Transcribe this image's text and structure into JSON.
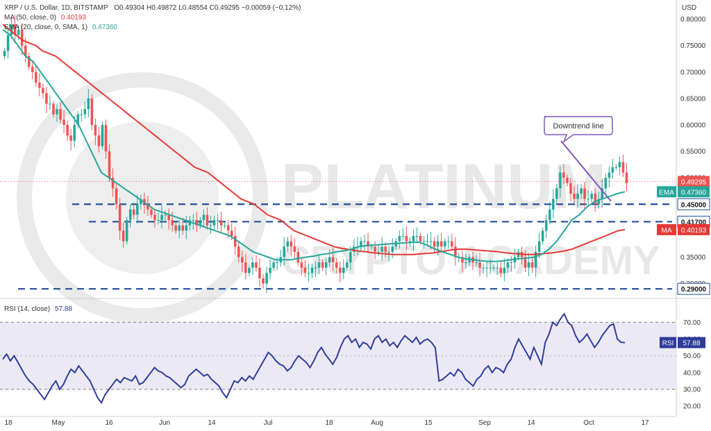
{
  "watermark": {
    "line1": "PLATINUM",
    "line2": "CRYPTO ACADEMY"
  },
  "header": {
    "symbol": "XRP / U.S. Dollar, 1D, BITSTAMP",
    "ohlc": "O0.49304  H0.49872  L0.48554  C0.49295  −0.00059 (−0.12%)",
    "ma_legend": "MA (50, close, 0)",
    "ma_value": "0.40193",
    "ema_legend": "EMA (20, close, 0, SMA, 1)",
    "ema_value": "0.47360",
    "rsi_legend": "RSI (14, close)",
    "rsi_value": "57.88"
  },
  "colors": {
    "up": "#26a69a",
    "down": "#ef5350",
    "ma": "#e53935",
    "ema": "#26a69a",
    "rsi": "#2e3b9a",
    "level": "#1f4e99",
    "trend": "#7e57c2",
    "rsi_band": "#ece9f7"
  },
  "chart_data": [
    {
      "type": "candlestick",
      "title": "XRP / U.S. Dollar, 1D, BITSTAMP",
      "ylabel": "USD",
      "x_ticks": [
        "18",
        "May",
        "16",
        "Jun",
        "14",
        "Jul",
        "18",
        "Aug",
        "15",
        "Sep",
        "14",
        "Oct",
        "17"
      ],
      "y_ticks": [
        "0.80000",
        "0.75000",
        "0.70000",
        "0.65000",
        "0.60000",
        "0.55000",
        "0.50000",
        "0.45000",
        "0.40000",
        "0.35000",
        "0.30000"
      ],
      "ylim": [
        0.285,
        0.81
      ],
      "last_price": "0.49295",
      "levels": [
        {
          "value": 0.45,
          "label": "0.45000"
        },
        {
          "value": 0.417,
          "label": "0.41700"
        },
        {
          "value": 0.29,
          "label": "0.29000"
        }
      ],
      "badges": [
        {
          "name": "EMA",
          "value": "0.47360"
        },
        {
          "name": "MA",
          "value": "0.40193"
        }
      ],
      "annotation": "Downtrend line",
      "close_series": [
        0.74,
        0.77,
        0.79,
        0.77,
        0.78,
        0.75,
        0.73,
        0.71,
        0.7,
        0.68,
        0.67,
        0.66,
        0.64,
        0.64,
        0.62,
        0.63,
        0.61,
        0.6,
        0.58,
        0.57,
        0.6,
        0.62,
        0.62,
        0.63,
        0.65,
        0.6,
        0.58,
        0.56,
        0.6,
        0.55,
        0.5,
        0.48,
        0.45,
        0.4,
        0.38,
        0.42,
        0.44,
        0.43,
        0.45,
        0.46,
        0.45,
        0.44,
        0.43,
        0.42,
        0.42,
        0.43,
        0.43,
        0.42,
        0.41,
        0.4,
        0.41,
        0.4,
        0.41,
        0.42,
        0.42,
        0.41,
        0.42,
        0.43,
        0.41,
        0.41,
        0.42,
        0.42,
        0.41,
        0.41,
        0.4,
        0.39,
        0.37,
        0.35,
        0.34,
        0.32,
        0.33,
        0.34,
        0.33,
        0.31,
        0.3,
        0.32,
        0.33,
        0.34,
        0.34,
        0.35,
        0.37,
        0.38,
        0.37,
        0.36,
        0.34,
        0.33,
        0.32,
        0.32,
        0.33,
        0.33,
        0.34,
        0.33,
        0.34,
        0.35,
        0.34,
        0.33,
        0.32,
        0.33,
        0.34,
        0.36,
        0.37,
        0.37,
        0.38,
        0.38,
        0.37,
        0.37,
        0.36,
        0.36,
        0.37,
        0.36,
        0.36,
        0.37,
        0.38,
        0.39,
        0.39,
        0.38,
        0.38,
        0.39,
        0.39,
        0.38,
        0.38,
        0.38,
        0.38,
        0.37,
        0.38,
        0.37,
        0.38,
        0.38,
        0.37,
        0.35,
        0.35,
        0.34,
        0.34,
        0.35,
        0.34,
        0.34,
        0.33,
        0.33,
        0.33,
        0.33,
        0.33,
        0.33,
        0.32,
        0.33,
        0.34,
        0.34,
        0.35,
        0.36,
        0.35,
        0.33,
        0.34,
        0.33,
        0.36,
        0.38,
        0.4,
        0.42,
        0.44,
        0.46,
        0.48,
        0.51,
        0.5,
        0.49,
        0.47,
        0.46,
        0.47,
        0.48,
        0.46,
        0.46,
        0.47,
        0.45,
        0.46,
        0.48,
        0.5,
        0.51,
        0.52,
        0.52,
        0.53,
        0.51,
        0.49
      ],
      "ma50_series": [
        0.79,
        0.78,
        0.77,
        0.76,
        0.755,
        0.75,
        0.74,
        0.735,
        0.73,
        0.72,
        0.71,
        0.7,
        0.69,
        0.68,
        0.67,
        0.66,
        0.65,
        0.64,
        0.63,
        0.62,
        0.61,
        0.6,
        0.59,
        0.58,
        0.57,
        0.56,
        0.55,
        0.54,
        0.53,
        0.52,
        0.515,
        0.51,
        0.5,
        0.49,
        0.48,
        0.47,
        0.46,
        0.455,
        0.45,
        0.44,
        0.43,
        0.425,
        0.42,
        0.41,
        0.4,
        0.395,
        0.39,
        0.385,
        0.38,
        0.375,
        0.37,
        0.367,
        0.365,
        0.363,
        0.361,
        0.36,
        0.358,
        0.357,
        0.356,
        0.355,
        0.355,
        0.355,
        0.355,
        0.356,
        0.357,
        0.358,
        0.36,
        0.362,
        0.364,
        0.365,
        0.365,
        0.364,
        0.363,
        0.362,
        0.361,
        0.36,
        0.358,
        0.357,
        0.356,
        0.355,
        0.355,
        0.356,
        0.357,
        0.358,
        0.36,
        0.362,
        0.365,
        0.37,
        0.375,
        0.38,
        0.385,
        0.39,
        0.395,
        0.4,
        0.402
      ],
      "ema20_series": [
        0.78,
        0.77,
        0.75,
        0.73,
        0.72,
        0.7,
        0.68,
        0.66,
        0.64,
        0.62,
        0.6,
        0.57,
        0.54,
        0.51,
        0.5,
        0.49,
        0.48,
        0.47,
        0.46,
        0.45,
        0.44,
        0.435,
        0.43,
        0.425,
        0.42,
        0.415,
        0.41,
        0.405,
        0.4,
        0.395,
        0.39,
        0.38,
        0.37,
        0.36,
        0.355,
        0.35,
        0.345,
        0.345,
        0.345,
        0.348,
        0.35,
        0.352,
        0.355,
        0.357,
        0.36,
        0.362,
        0.365,
        0.37,
        0.372,
        0.373,
        0.374,
        0.375,
        0.376,
        0.377,
        0.378,
        0.378,
        0.372,
        0.365,
        0.36,
        0.355,
        0.35,
        0.347,
        0.345,
        0.343,
        0.342,
        0.342,
        0.343,
        0.345,
        0.347,
        0.348,
        0.35,
        0.355,
        0.365,
        0.38,
        0.4,
        0.42,
        0.43,
        0.445,
        0.455,
        0.46,
        0.465,
        0.47,
        0.4736
      ]
    },
    {
      "type": "line",
      "title": "RSI (14, close)",
      "y_ticks": [
        "70.00",
        "60.00",
        "50.00",
        "40.00",
        "30.00",
        "20.00"
      ],
      "ylim": [
        18,
        78
      ],
      "band": [
        30,
        70
      ],
      "last_value": "57.88",
      "values": [
        48,
        51,
        47,
        50,
        46,
        42,
        38,
        35,
        33,
        30,
        27,
        24,
        28,
        32,
        35,
        30,
        33,
        38,
        42,
        40,
        44,
        41,
        38,
        35,
        30,
        25,
        22,
        27,
        30,
        33,
        36,
        34,
        37,
        36,
        35,
        38,
        33,
        34,
        37,
        40,
        43,
        41,
        40,
        38,
        37,
        35,
        33,
        31,
        33,
        38,
        40,
        42,
        40,
        38,
        39,
        36,
        34,
        32,
        28,
        25,
        30,
        35,
        34,
        37,
        35,
        38,
        36,
        40,
        44,
        48,
        52,
        50,
        47,
        45,
        44,
        41,
        43,
        47,
        50,
        48,
        46,
        43,
        47,
        52,
        55,
        51,
        48,
        45,
        49,
        55,
        60,
        62,
        58,
        60,
        55,
        58,
        57,
        54,
        60,
        62,
        58,
        60,
        56,
        58,
        55,
        59,
        62,
        60,
        58,
        61,
        57,
        59,
        60,
        58,
        55,
        35,
        36,
        38,
        40,
        38,
        42,
        40,
        36,
        34,
        32,
        36,
        38,
        42,
        44,
        40,
        43,
        42,
        40,
        45,
        48,
        55,
        60,
        56,
        52,
        48,
        55,
        50,
        45,
        58,
        63,
        70,
        68,
        72,
        75,
        70,
        68,
        62,
        58,
        60,
        63,
        59,
        55,
        58,
        62,
        65,
        68,
        69,
        60,
        58,
        57.88
      ]
    }
  ]
}
